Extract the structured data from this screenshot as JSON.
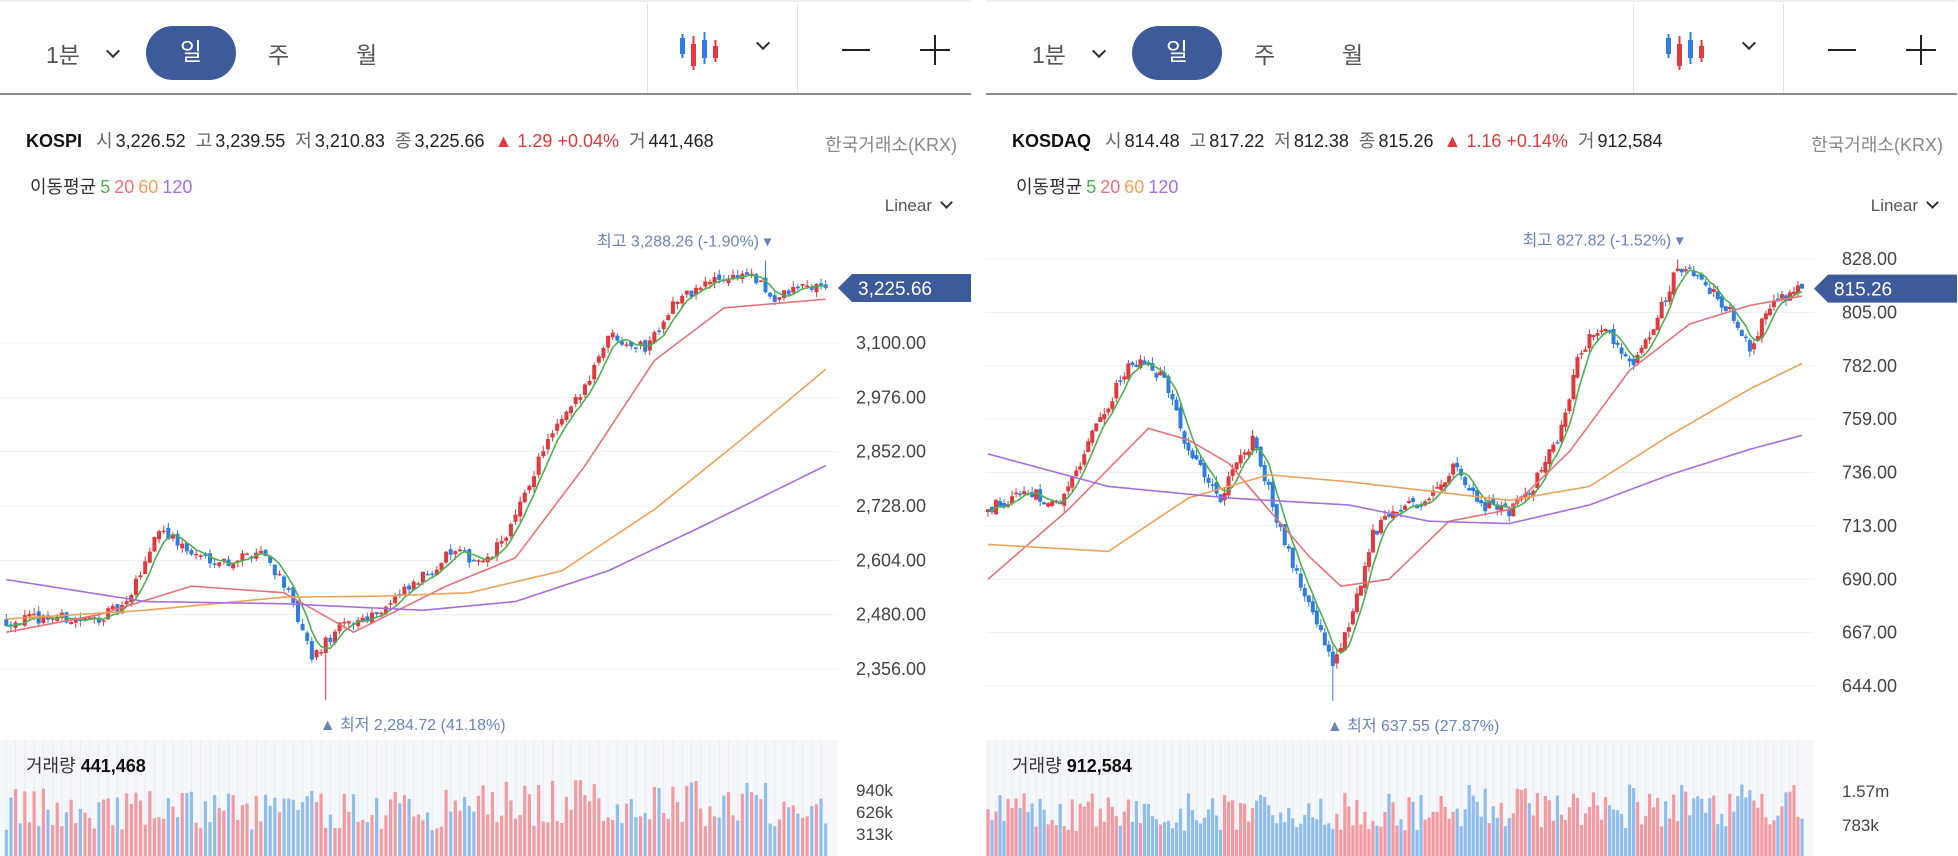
{
  "toolbar": {
    "minute_label": "1분",
    "day_label": "일",
    "week_label": "주",
    "month_label": "월",
    "chart_type_icon": "candlestick-icon",
    "zoom_out_icon": "minus-icon",
    "zoom_in_icon": "plus-icon"
  },
  "colors": {
    "accent": "#3d5a9a",
    "up": "#e03a3e",
    "down": "#2f7de1",
    "ma5": "#4cb050",
    "ma20": "#e8737a",
    "ma60": "#f0a25a",
    "ma120": "#a46fe0",
    "price_tag": "#3d5a9a"
  },
  "ma_legend": {
    "label": "이동평균",
    "p5": "5",
    "p20": "20",
    "p60": "60",
    "p120": "120"
  },
  "panels": [
    {
      "name": "KOSPI",
      "open_label": "시",
      "open": "3,226.52",
      "high_label": "고",
      "high": "3,239.55",
      "low_label": "저",
      "low": "3,210.83",
      "close_label": "종",
      "close": "3,225.66",
      "change": "▲ 1.29 +0.04%",
      "volume_label": "거",
      "volume": "441,468",
      "exchange": "한국거래소(KRX)",
      "scale": "Linear",
      "current_price": "3,225.66",
      "max_label": "최고",
      "max_value": "3,288.26 (-1.90%)",
      "min_label": "최저",
      "min_value": "2,284.72 (41.18%)",
      "vol_title": "거래량",
      "vol_value": "441,468"
    },
    {
      "name": "KOSDAQ",
      "open_label": "시",
      "open": "814.48",
      "high_label": "고",
      "high": "817.22",
      "low_label": "저",
      "low": "812.38",
      "close_label": "종",
      "close": "815.26",
      "change": "▲ 1.16 +0.14%",
      "volume_label": "거",
      "volume": "912,584",
      "exchange": "한국거래소(KRX)",
      "scale": "Linear",
      "current_price": "815.26",
      "max_label": "최고",
      "max_value": "827.82 (-1.52%)",
      "min_label": "최저",
      "min_value": "637.55 (27.87%)",
      "vol_title": "거래량",
      "vol_value": "912,584"
    }
  ],
  "chart_data": [
    {
      "type": "candlestick",
      "title": "KOSPI",
      "y_ticks": [
        3100,
        2976,
        2852,
        2728,
        2604,
        2480,
        2356
      ],
      "y_tick_labels": [
        "3,100.00",
        "2,976.00",
        "2,852.00",
        "2,728.00",
        "2,604.00",
        "2,480.00",
        "2,356.00"
      ],
      "ylim": [
        2250,
        3330
      ],
      "anchors": [
        [
          0,
          2465
        ],
        [
          10,
          2475
        ],
        [
          18,
          2466
        ],
        [
          26,
          2500
        ],
        [
          33,
          2680
        ],
        [
          40,
          2618
        ],
        [
          48,
          2600
        ],
        [
          55,
          2628
        ],
        [
          60,
          2552
        ],
        [
          66,
          2380
        ],
        [
          72,
          2450
        ],
        [
          80,
          2486
        ],
        [
          88,
          2546
        ],
        [
          96,
          2622
        ],
        [
          104,
          2600
        ],
        [
          110,
          2700
        ],
        [
          116,
          2860
        ],
        [
          124,
          2980
        ],
        [
          130,
          3120
        ],
        [
          138,
          3090
        ],
        [
          144,
          3190
        ],
        [
          152,
          3240
        ],
        [
          160,
          3260
        ],
        [
          166,
          3200
        ],
        [
          172,
          3230
        ],
        [
          177,
          3225.66
        ]
      ],
      "ma20_anchors": [
        [
          0,
          2440
        ],
        [
          20,
          2480
        ],
        [
          40,
          2545
        ],
        [
          60,
          2530
        ],
        [
          75,
          2440
        ],
        [
          95,
          2545
        ],
        [
          110,
          2610
        ],
        [
          125,
          2820
        ],
        [
          140,
          3060
        ],
        [
          155,
          3180
        ],
        [
          177,
          3200
        ]
      ],
      "ma60_anchors": [
        [
          0,
          2470
        ],
        [
          30,
          2490
        ],
        [
          60,
          2520
        ],
        [
          80,
          2522
        ],
        [
          100,
          2530
        ],
        [
          120,
          2580
        ],
        [
          140,
          2720
        ],
        [
          160,
          2890
        ],
        [
          177,
          3040
        ]
      ],
      "ma120_anchors": [
        [
          0,
          2560
        ],
        [
          30,
          2510
        ],
        [
          60,
          2505
        ],
        [
          90,
          2490
        ],
        [
          110,
          2510
        ],
        [
          130,
          2580
        ],
        [
          150,
          2680
        ],
        [
          177,
          2820
        ]
      ],
      "high_point": {
        "index": 164,
        "value": 3288.26
      },
      "low_point": {
        "index": 69,
        "value": 2284.72
      },
      "current": 3225.66,
      "volume_ticks": [
        "940k",
        "626k",
        "313k"
      ],
      "volume_max": 1100000,
      "volume_base": 441468
    },
    {
      "type": "candlestick",
      "title": "KOSDAQ",
      "y_ticks": [
        828,
        805,
        782,
        759,
        736,
        713,
        690,
        667,
        644
      ],
      "y_tick_labels": [
        "828.00",
        "805.00",
        "782.00",
        "759.00",
        "736.00",
        "713.00",
        "690.00",
        "667.00",
        "644.00"
      ],
      "ylim": [
        626,
        845
      ],
      "anchors": [
        [
          0,
          720
        ],
        [
          10,
          728
        ],
        [
          18,
          722
        ],
        [
          28,
          760
        ],
        [
          36,
          784
        ],
        [
          44,
          776
        ],
        [
          50,
          746
        ],
        [
          58,
          726
        ],
        [
          66,
          750
        ],
        [
          74,
          706
        ],
        [
          80,
          678
        ],
        [
          86,
          654
        ],
        [
          90,
          668
        ],
        [
          96,
          710
        ],
        [
          104,
          722
        ],
        [
          110,
          724
        ],
        [
          116,
          738
        ],
        [
          124,
          722
        ],
        [
          130,
          718
        ],
        [
          136,
          730
        ],
        [
          142,
          750
        ],
        [
          148,
          790
        ],
        [
          154,
          800
        ],
        [
          160,
          782
        ],
        [
          166,
          798
        ],
        [
          172,
          826
        ],
        [
          178,
          818
        ],
        [
          184,
          808
        ],
        [
          190,
          790
        ],
        [
          196,
          810
        ],
        [
          203,
          815.26
        ]
      ],
      "ma20_anchors": [
        [
          0,
          690
        ],
        [
          20,
          720
        ],
        [
          40,
          755
        ],
        [
          50,
          750
        ],
        [
          60,
          740
        ],
        [
          70,
          720
        ],
        [
          80,
          700
        ],
        [
          88,
          687
        ],
        [
          100,
          690
        ],
        [
          115,
          715
        ],
        [
          130,
          720
        ],
        [
          145,
          745
        ],
        [
          160,
          780
        ],
        [
          175,
          800
        ],
        [
          190,
          808
        ],
        [
          203,
          812
        ]
      ],
      "ma60_anchors": [
        [
          0,
          705
        ],
        [
          30,
          702
        ],
        [
          50,
          725
        ],
        [
          70,
          735
        ],
        [
          90,
          732
        ],
        [
          110,
          728
        ],
        [
          130,
          724
        ],
        [
          150,
          730
        ],
        [
          170,
          752
        ],
        [
          190,
          772
        ],
        [
          203,
          783
        ]
      ],
      "ma120_anchors": [
        [
          0,
          744
        ],
        [
          30,
          730
        ],
        [
          60,
          725
        ],
        [
          90,
          722
        ],
        [
          110,
          715
        ],
        [
          130,
          714
        ],
        [
          150,
          722
        ],
        [
          170,
          735
        ],
        [
          190,
          746
        ],
        [
          203,
          752
        ]
      ],
      "high_point": {
        "index": 172,
        "value": 827.82
      },
      "low_point": {
        "index": 86,
        "value": 637.55
      },
      "current": 815.26,
      "volume_ticks": [
        "1.57m",
        "783k"
      ],
      "volume_max": 2400000,
      "volume_base": 912584
    }
  ]
}
